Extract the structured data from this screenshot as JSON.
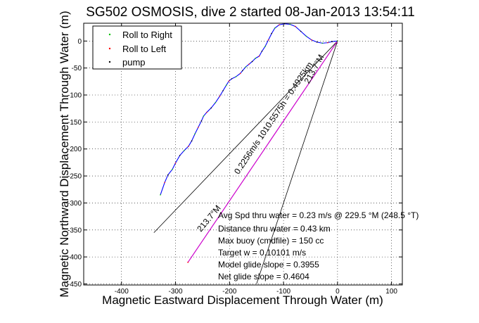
{
  "chart_data": {
    "type": "line",
    "title": "SG502 OSMOSIS, dive 2 started 08-Jan-2013 13:54:11",
    "xlabel": "Magnetic Eastward Displacement Through Water (m)",
    "ylabel": "Magnetic Northward Displacement Through Water (m)",
    "xlim": [
      -470,
      120
    ],
    "ylim": [
      -452,
      33
    ],
    "x_ticks": [
      -400,
      -300,
      -200,
      -100,
      0,
      100
    ],
    "y_ticks": [
      0,
      -50,
      -100,
      -150,
      -200,
      -250,
      -300,
      -350,
      -400,
      -450
    ],
    "grid": true,
    "legend_position": "top-left",
    "legend": [
      "Roll to Right",
      "Roll to Left",
      "pump"
    ],
    "colors": {
      "roll_right": "#00c000",
      "roll_left": "#ff0000",
      "pump": "#000000",
      "track": "#0000ff",
      "track2": "#cc00cc",
      "guides": "#000000"
    },
    "series": [
      {
        "name": "track",
        "points": [
          [
            -328,
            -285
          ],
          [
            -320,
            -262
          ],
          [
            -314,
            -248
          ],
          [
            -306,
            -238
          ],
          [
            -300,
            -226
          ],
          [
            -292,
            -212
          ],
          [
            -284,
            -203
          ],
          [
            -276,
            -195
          ],
          [
            -270,
            -185
          ],
          [
            -264,
            -172
          ],
          [
            -258,
            -160
          ],
          [
            -252,
            -148
          ],
          [
            -248,
            -139
          ],
          [
            -242,
            -132
          ],
          [
            -234,
            -124
          ],
          [
            -226,
            -114
          ],
          [
            -218,
            -102
          ],
          [
            -212,
            -92
          ],
          [
            -206,
            -82
          ],
          [
            -201,
            -74
          ],
          [
            -196,
            -70
          ],
          [
            -188,
            -66
          ],
          [
            -180,
            -60
          ],
          [
            -176,
            -55
          ],
          [
            -170,
            -48
          ],
          [
            -164,
            -43
          ],
          [
            -158,
            -38
          ],
          [
            -152,
            -32
          ],
          [
            -145,
            -28
          ],
          [
            -140,
            -19
          ],
          [
            -134,
            -10
          ],
          [
            -128,
            2
          ],
          [
            -122,
            14
          ],
          [
            -116,
            24
          ],
          [
            -108,
            30
          ],
          [
            -98,
            32
          ],
          [
            -88,
            31
          ],
          [
            -78,
            27
          ],
          [
            -68,
            18
          ],
          [
            -58,
            9
          ],
          [
            -48,
            2
          ],
          [
            -38,
            -2
          ],
          [
            -28,
            -4
          ],
          [
            -18,
            -3
          ],
          [
            -10,
            -1
          ],
          [
            0,
            0
          ]
        ]
      },
      {
        "name": "direct",
        "points": [
          [
            -277,
            -410
          ],
          [
            0,
            0
          ]
        ]
      }
    ],
    "guide_lines": [
      [
        [
          -340,
          -355
        ],
        [
          0,
          0
        ]
      ],
      [
        [
          -150,
          -450
        ],
        [
          0,
          0
        ]
      ]
    ],
    "rotated_labels": [
      "213.7°M",
      "0.2256m/s 1010.5575h = 0.4925km",
      "213.7°M"
    ],
    "annotations": [
      "Avg Spd thru water =  0.23 m/s @ 229.5    °M (248.5 °T)",
      "Distance thru water =  0.43 km",
      "Max buoy (cmdfile) = 150 cc",
      "Target w = 0.10101 m/s",
      "Model glide slope = 0.3955",
      "Net glide slope = 0.4604"
    ]
  }
}
